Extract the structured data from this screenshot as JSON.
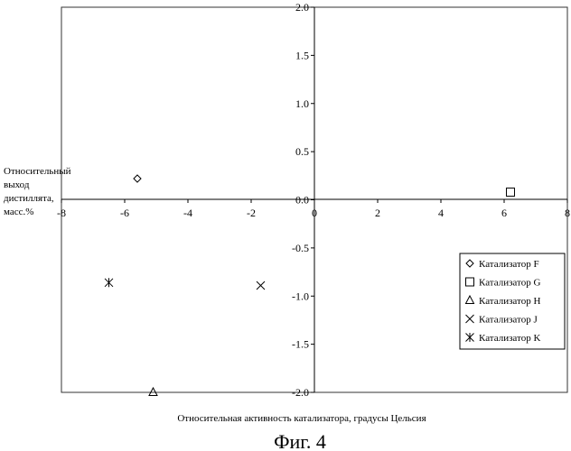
{
  "chart_data": {
    "type": "scatter",
    "title": "",
    "xlabel": "Относительная активность катализатора, градусы Цельсия",
    "ylabel": [
      "Относительный",
      "выход",
      "дистиллята,",
      "масс.%"
    ],
    "xlim": [
      -8,
      8
    ],
    "ylim": [
      -2.0,
      2.0
    ],
    "x_ticks": [
      "-8",
      "-6",
      "-4",
      "-2",
      "0",
      "2",
      "4",
      "6",
      "8"
    ],
    "y_ticks": [
      "-2.0",
      "-1.5",
      "-1.0",
      "-0.5",
      "0.0",
      "0.5",
      "1.0",
      "1.5",
      "2.0"
    ],
    "grid": false,
    "legend_position": "right",
    "series": [
      {
        "name": "Катализатор F",
        "marker": "diamond",
        "points": [
          {
            "x": -5.6,
            "y": 0.22
          }
        ]
      },
      {
        "name": "Катализатор G",
        "marker": "square",
        "points": [
          {
            "x": 6.2,
            "y": 0.08
          }
        ]
      },
      {
        "name": "Катализатор H",
        "marker": "triangle",
        "points": [
          {
            "x": -5.1,
            "y": -2.0
          }
        ]
      },
      {
        "name": "Катализатор J",
        "marker": "x",
        "points": [
          {
            "x": -1.7,
            "y": -0.89
          }
        ]
      },
      {
        "name": "Катализатор K",
        "marker": "asterisk",
        "points": [
          {
            "x": -6.5,
            "y": -0.86
          }
        ]
      }
    ]
  },
  "caption": "Фиг. 4"
}
